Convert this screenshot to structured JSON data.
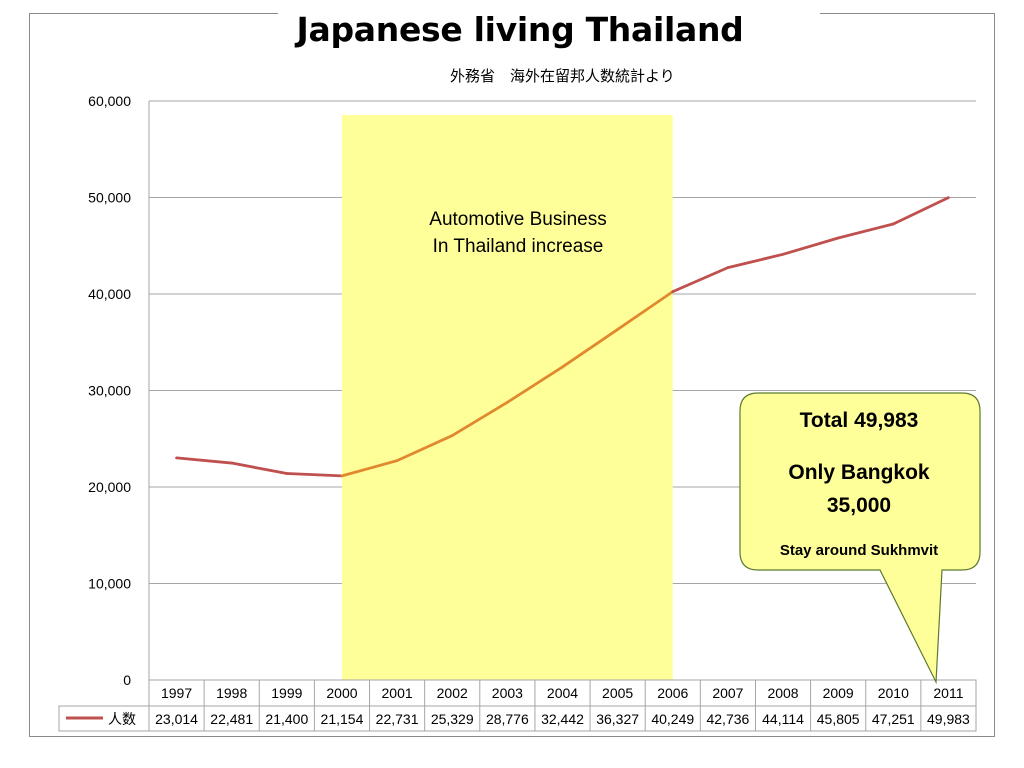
{
  "title": "Japanese living Thailand",
  "subtitle": "外務省　海外在留邦人数統計より",
  "annotation": {
    "lines": [
      "Automotive Business",
      "In Thailand increase"
    ]
  },
  "callout": {
    "total": "Total  49,983",
    "bangkok_line1": "Only Bangkok",
    "bangkok_line2": "35,000",
    "note": "Stay around Sukhmvit"
  },
  "colors": {
    "line": "#c0504d",
    "line_highlight": "#e0892e",
    "highlight_band": "#ffff99",
    "callout_fill": "#ffff99",
    "callout_border": "#5b7a2e",
    "grid": "#a6a6a6"
  },
  "chart_data": {
    "type": "line",
    "title": "Japanese living Thailand",
    "subtitle": "外務省　海外在留邦人数統計より",
    "categories": [
      "1997",
      "1998",
      "1999",
      "2000",
      "2001",
      "2002",
      "2003",
      "2004",
      "2005",
      "2006",
      "2007",
      "2008",
      "2009",
      "2010",
      "2011"
    ],
    "series": [
      {
        "name": "人数",
        "values": [
          23014,
          22481,
          21400,
          21154,
          22731,
          25329,
          28776,
          32442,
          36327,
          40249,
          42736,
          44114,
          45805,
          47251,
          49983
        ]
      }
    ],
    "data_table_values": [
      "23,014",
      "22,481",
      "21,400",
      "21,154",
      "22,731",
      "25,329",
      "28,776",
      "32,442",
      "36,327",
      "40,249",
      "42,736",
      "44,114",
      "45,805",
      "47,251",
      "49,983"
    ],
    "yticks": [
      "0",
      "10,000",
      "20,000",
      "30,000",
      "40,000",
      "50,000",
      "60,000"
    ],
    "ylim": [
      0,
      60000
    ],
    "grid": true,
    "highlight_range": [
      "2000",
      "2006"
    ],
    "legend": "data-table"
  }
}
